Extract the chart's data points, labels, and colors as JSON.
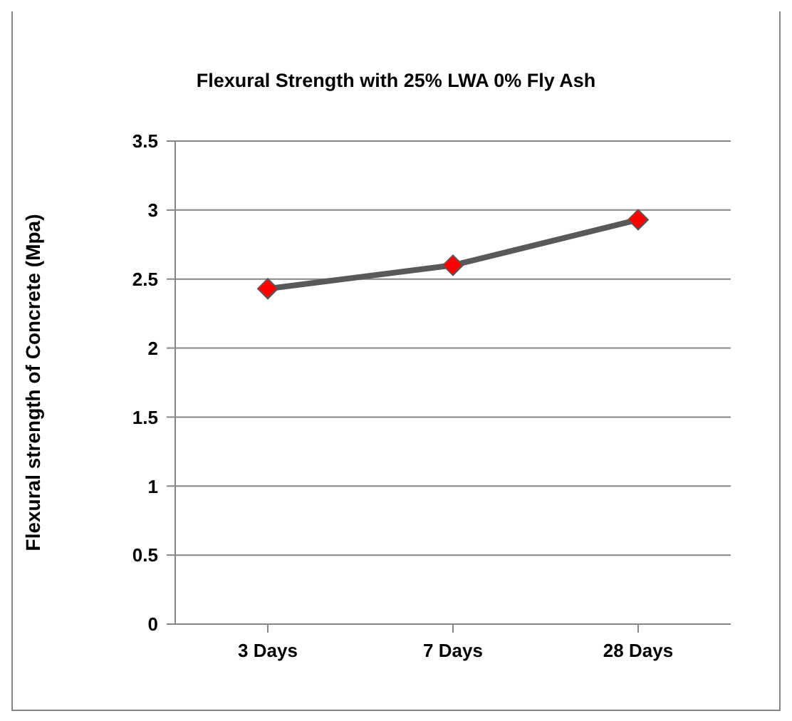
{
  "chart_data": {
    "type": "line",
    "title": "Flexural Strength with 25% LWA 0% Fly Ash",
    "ylabel": "Flexural strength of Concrete (Mpa)",
    "categories": [
      "3 Days",
      "7 Days",
      "28 Days"
    ],
    "series": [
      {
        "color": "#595959",
        "colors": [
          "#ff0000",
          "#ff0000",
          "#ff0000"
        ],
        "values": [
          2.43,
          2.6,
          2.93
        ]
      }
    ],
    "ylim": [
      0,
      3.5
    ],
    "yticks": [
      0,
      0.5,
      1,
      1.5,
      2,
      2.5,
      3,
      3.5
    ],
    "grid": "y",
    "legend": false,
    "marker": "diamond",
    "line_style": "solid"
  }
}
